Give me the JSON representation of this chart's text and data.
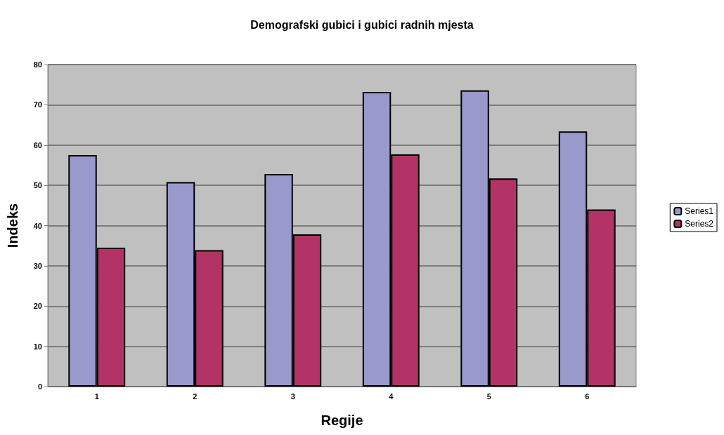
{
  "chart_data": {
    "type": "bar",
    "title": "Demografski gubici i gubici radnih mjesta",
    "xlabel": "Regije",
    "ylabel": "Indeks",
    "categories": [
      "1",
      "2",
      "3",
      "4",
      "5",
      "6"
    ],
    "series": [
      {
        "name": "Series1",
        "color": "#9999cc",
        "values": [
          57.5,
          50.8,
          52.8,
          73.2,
          73.6,
          63.4
        ]
      },
      {
        "name": "Series2",
        "color": "#b33366",
        "values": [
          34.5,
          33.9,
          37.8,
          57.7,
          51.7,
          44.0
        ]
      }
    ],
    "ylim": [
      0,
      80
    ],
    "yticks": [
      0,
      10,
      20,
      30,
      40,
      50,
      60,
      70,
      80
    ],
    "grid": "y",
    "legend": "right"
  }
}
